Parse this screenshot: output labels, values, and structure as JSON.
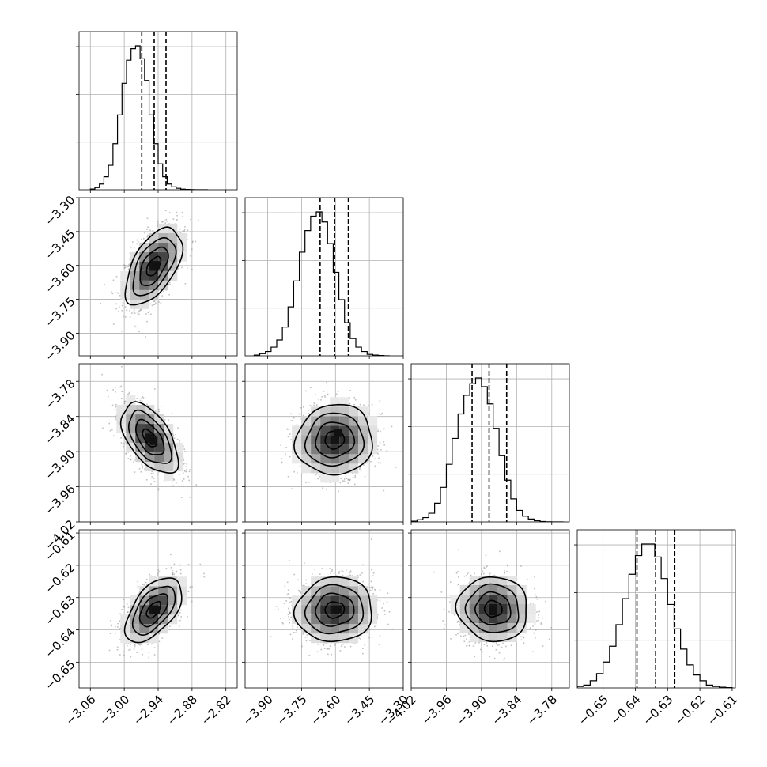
{
  "chart_data": {
    "type": "corner",
    "grid": true,
    "parameters": [
      {
        "range": [
          -3.08,
          -2.8
        ],
        "ticks": [
          -3.06,
          -3.0,
          -2.94,
          -2.88,
          -2.82
        ],
        "tick_labels": [
          "−3.06",
          "−3.00",
          "−2.94",
          "−2.88",
          "−2.82"
        ],
        "quantiles": [
          -2.969,
          -2.947,
          -2.926
        ],
        "hist_bins": [
          -3.06,
          -3.052,
          -3.044,
          -3.036,
          -3.028,
          -3.02,
          -3.012,
          -3.004,
          -2.996,
          -2.988,
          -2.98,
          -2.972,
          -2.964,
          -2.956,
          -2.948,
          -2.94,
          -2.932,
          -2.924,
          -2.916,
          -2.908,
          -2.9,
          -2.892,
          -2.884,
          -2.876,
          -2.868,
          -2.86,
          -2.852
        ],
        "hist_counts": [
          0.005,
          0.015,
          0.04,
          0.09,
          0.17,
          0.32,
          0.52,
          0.74,
          0.9,
          0.98,
          1.0,
          0.91,
          0.76,
          0.52,
          0.32,
          0.18,
          0.09,
          0.04,
          0.02,
          0.01,
          0.004,
          0.002,
          0.001,
          0.0,
          0.0,
          0.0
        ]
      },
      {
        "range": [
          -4.0,
          -3.3
        ],
        "ticks": [
          -3.9,
          -3.75,
          -3.6,
          -3.45,
          -3.3
        ],
        "tick_labels": [
          "−3.90",
          "−3.75",
          "−3.60",
          "−3.45",
          "−3.30"
        ],
        "quantiles": [
          -3.668,
          -3.604,
          -3.543
        ],
        "hist_bins": [
          -3.96,
          -3.935,
          -3.91,
          -3.885,
          -3.86,
          -3.835,
          -3.81,
          -3.785,
          -3.76,
          -3.735,
          -3.71,
          -3.685,
          -3.66,
          -3.635,
          -3.61,
          -3.585,
          -3.56,
          -3.535,
          -3.51,
          -3.485,
          -3.46,
          -3.435,
          -3.41,
          -3.385,
          -3.36
        ],
        "hist_counts": [
          0.005,
          0.015,
          0.03,
          0.06,
          0.11,
          0.2,
          0.34,
          0.52,
          0.72,
          0.87,
          0.97,
          1.0,
          0.93,
          0.78,
          0.58,
          0.39,
          0.23,
          0.12,
          0.06,
          0.03,
          0.01,
          0.005,
          0.002,
          0.0
        ]
      },
      {
        "range": [
          -4.02,
          -3.75
        ],
        "ticks": [
          -4.02,
          -3.96,
          -3.9,
          -3.84,
          -3.78
        ],
        "tick_labels": [
          "−4.02",
          "−3.96",
          "−3.90",
          "−3.84",
          "−3.78"
        ],
        "quantiles": [
          -3.916,
          -3.887,
          -3.857
        ],
        "hist_bins": [
          -4.02,
          -4.01,
          -4.0,
          -3.99,
          -3.98,
          -3.97,
          -3.96,
          -3.95,
          -3.94,
          -3.93,
          -3.92,
          -3.91,
          -3.9,
          -3.89,
          -3.88,
          -3.87,
          -3.86,
          -3.85,
          -3.84,
          -3.83,
          -3.82,
          -3.81,
          -3.8,
          -3.79,
          -3.78,
          -3.77,
          -3.76
        ],
        "hist_counts": [
          0.005,
          0.015,
          0.03,
          0.06,
          0.13,
          0.24,
          0.4,
          0.58,
          0.75,
          0.88,
          0.96,
          1.0,
          0.94,
          0.82,
          0.65,
          0.46,
          0.29,
          0.16,
          0.08,
          0.04,
          0.02,
          0.008,
          0.003,
          0.001,
          0.0,
          0.0
        ]
      },
      {
        "range": [
          -0.658,
          -0.609
        ],
        "ticks": [
          -0.65,
          -0.64,
          -0.63,
          -0.62,
          -0.61
        ],
        "tick_labels": [
          "−0.65",
          "−0.64",
          "−0.63",
          "−0.62",
          "−0.61"
        ],
        "quantiles": [
          -0.6395,
          -0.6337,
          -0.6278
        ],
        "hist_bins": [
          -0.658,
          -0.656,
          -0.654,
          -0.652,
          -0.65,
          -0.648,
          -0.646,
          -0.644,
          -0.642,
          -0.64,
          -0.638,
          -0.636,
          -0.634,
          -0.632,
          -0.63,
          -0.628,
          -0.626,
          -0.624,
          -0.622,
          -0.62,
          -0.618,
          -0.616,
          -0.614,
          -0.612,
          -0.61
        ],
        "hist_counts": [
          0.01,
          0.02,
          0.05,
          0.1,
          0.18,
          0.29,
          0.44,
          0.62,
          0.79,
          0.92,
          1.0,
          1.0,
          0.91,
          0.76,
          0.58,
          0.41,
          0.27,
          0.16,
          0.09,
          0.05,
          0.02,
          0.01,
          0.005,
          0.002
        ]
      }
    ],
    "pairs": [
      {
        "x": 0,
        "y": 1,
        "center": [
          -2.948,
          -3.604
        ],
        "correlation": 0.55,
        "peak": [
          -2.944,
          -3.598
        ]
      },
      {
        "x": 0,
        "y": 2,
        "center": [
          -2.955,
          -3.877
        ],
        "correlation": -0.55,
        "peak": [
          -2.948,
          -3.882
        ]
      },
      {
        "x": 1,
        "y": 2,
        "center": [
          -3.604,
          -3.88
        ],
        "correlation": 0.05,
        "peak": [
          -3.588,
          -3.868
        ]
      },
      {
        "x": 0,
        "y": 3,
        "center": [
          -2.948,
          -0.6338
        ],
        "correlation": 0.55,
        "peak": [
          -2.944,
          -0.6338
        ]
      },
      {
        "x": 1,
        "y": 3,
        "center": [
          -3.604,
          -0.6338
        ],
        "correlation": 0.05,
        "peak": [
          -3.591,
          -0.6336
        ]
      },
      {
        "x": 2,
        "y": 3,
        "center": [
          -3.88,
          -0.6335
        ],
        "correlation": -0.05,
        "peak": [
          -3.88,
          -0.6343
        ]
      }
    ],
    "spread": [
      0.025,
      0.085,
      0.03,
      0.005
    ],
    "contour_levels": [
      0.5,
      1.0,
      1.5,
      2.0
    ],
    "line_colors": {
      "axis": "#000000",
      "grid": "#b0b0b0",
      "hist": "#000000",
      "contour": "#000000",
      "points": "#8c8c8c"
    }
  }
}
